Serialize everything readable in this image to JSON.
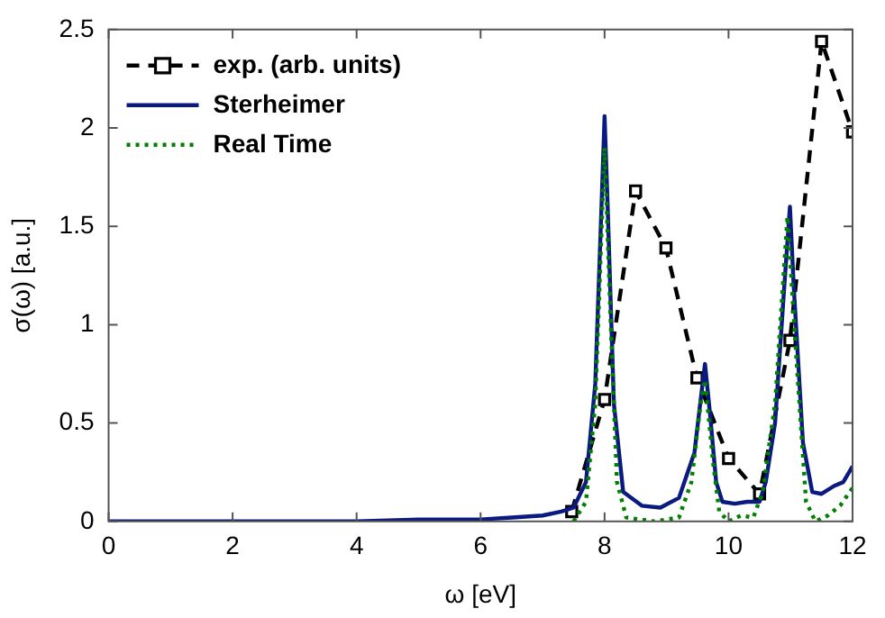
{
  "chart_data": {
    "type": "line",
    "xlabel": "ω [eV]",
    "ylabel": "σ(ω) [a.u.]",
    "xlim": [
      0,
      12
    ],
    "xticks": [
      0,
      2,
      4,
      6,
      8,
      10,
      12
    ],
    "ylim": [
      0,
      2.5
    ],
    "yticks": [
      0,
      0.5,
      1,
      1.5,
      2,
      2.5
    ],
    "grid": false,
    "legend": "top left",
    "series": [
      {
        "name": "exp. (arb. units)",
        "color": "#000000",
        "marker": "square",
        "line_style": "dashed",
        "x": [
          7.47,
          8.0,
          8.5,
          8.99,
          9.49,
          10.0,
          10.5,
          10.99,
          11.5,
          12.0
        ],
        "values": [
          0.05,
          0.62,
          1.68,
          1.39,
          0.73,
          0.32,
          0.14,
          0.92,
          2.44,
          1.98
        ]
      },
      {
        "name": "Sterheimer",
        "color": "#0a1a80",
        "marker": "none",
        "line_style": "solid",
        "x": [
          0,
          2,
          4,
          5,
          6,
          6.5,
          7,
          7.3,
          7.5,
          7.7,
          7.85,
          7.95,
          8.0,
          8.05,
          8.15,
          8.3,
          8.6,
          8.9,
          9.2,
          9.45,
          9.55,
          9.62,
          9.7,
          9.8,
          9.9,
          10.1,
          10.3,
          10.5,
          10.6,
          10.75,
          10.9,
          10.99,
          11.05,
          11.2,
          11.35,
          11.5,
          11.7,
          11.85,
          12.0
        ],
        "values": [
          0,
          0,
          0,
          0.01,
          0.01,
          0.02,
          0.03,
          0.05,
          0.07,
          0.2,
          0.7,
          1.6,
          2.06,
          1.6,
          0.6,
          0.15,
          0.08,
          0.07,
          0.12,
          0.35,
          0.62,
          0.8,
          0.55,
          0.2,
          0.1,
          0.09,
          0.1,
          0.1,
          0.2,
          0.5,
          1.2,
          1.6,
          1.2,
          0.4,
          0.15,
          0.14,
          0.18,
          0.2,
          0.28
        ]
      },
      {
        "name": "Real Time",
        "color": "#008000",
        "marker": "none",
        "line_style": "dotted",
        "x": [
          7.5,
          7.7,
          7.85,
          8.0,
          8.1,
          8.2,
          8.35,
          8.8,
          9.2,
          9.4,
          9.55,
          9.62,
          9.75,
          9.85,
          10.0,
          10.2,
          10.4,
          10.55,
          10.75,
          10.95,
          11.1,
          11.25,
          11.4,
          11.6,
          11.8,
          12.0
        ],
        "values": [
          0,
          0.1,
          0.6,
          1.9,
          1.0,
          0.2,
          0.02,
          0,
          0.02,
          0.2,
          0.6,
          0.72,
          0.3,
          0.05,
          0,
          0.03,
          0.02,
          0.15,
          0.6,
          1.55,
          0.8,
          0.1,
          0,
          0.03,
          0.08,
          0.17
        ]
      }
    ]
  }
}
